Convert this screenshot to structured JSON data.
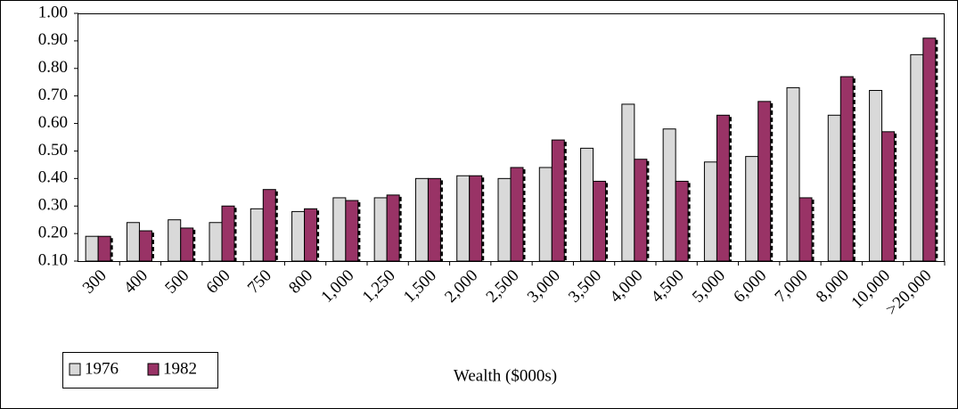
{
  "chart_data": {
    "type": "bar",
    "xlabel": "Wealth ($000s)",
    "categories": [
      "300",
      "400",
      "500",
      "600",
      "750",
      "800",
      "1,000",
      "1,250",
      "1,500",
      "2,000",
      "2,500",
      "3,000",
      "3,500",
      "4,000",
      "4,500",
      "5,000",
      "6,000",
      "7,000",
      "8,000",
      "10,000",
      ">20,000"
    ],
    "series": [
      {
        "name": "1976",
        "color": "#d9d9d9",
        "values": [
          0.19,
          0.24,
          0.25,
          0.24,
          0.29,
          0.28,
          0.33,
          0.33,
          0.4,
          0.41,
          0.4,
          0.44,
          0.51,
          0.67,
          0.58,
          0.46,
          0.48,
          0.73,
          0.63,
          0.72,
          0.85
        ]
      },
      {
        "name": "1982",
        "color": "#993366",
        "values": [
          0.19,
          0.21,
          0.22,
          0.3,
          0.36,
          0.29,
          0.32,
          0.34,
          0.4,
          0.41,
          0.44,
          0.54,
          0.39,
          0.47,
          0.39,
          0.63,
          0.68,
          0.33,
          0.77,
          0.57,
          0.91
        ]
      }
    ],
    "ylim": [
      0.1,
      1
    ],
    "yticks": [
      {
        "value": 0.1,
        "label": "0.10"
      },
      {
        "value": 0.2,
        "label": "0.20"
      },
      {
        "value": 0.3,
        "label": "0.30"
      },
      {
        "value": 0.4,
        "label": "0.40"
      },
      {
        "value": 0.5,
        "label": "0.50"
      },
      {
        "value": 0.6,
        "label": "0.60"
      },
      {
        "value": 0.7,
        "label": "0.70"
      },
      {
        "value": 0.8,
        "label": "0.80"
      },
      {
        "value": 0.9,
        "label": "0.90"
      },
      {
        "value": 1,
        "label": "1.00"
      }
    ],
    "grid": false,
    "legend": "bottom-left"
  }
}
